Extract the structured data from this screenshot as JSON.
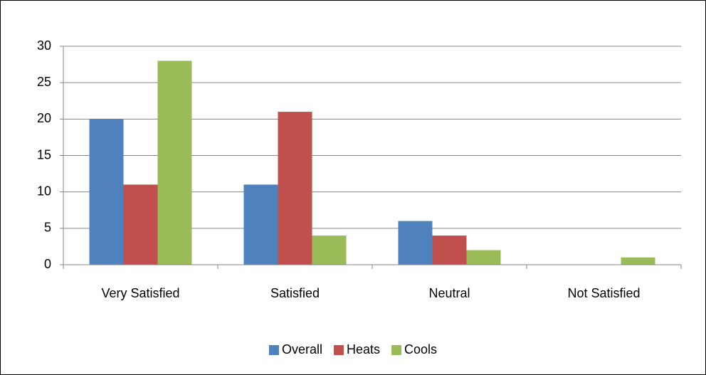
{
  "chart_data": {
    "type": "bar",
    "categories": [
      "Very Satisfied",
      "Satisfied",
      "Neutral",
      "Not Satisfied"
    ],
    "series": [
      {
        "name": "Overall",
        "color": "#4f81bd",
        "values": [
          20,
          11,
          6,
          0
        ]
      },
      {
        "name": "Heats",
        "color": "#c0504d",
        "values": [
          11,
          21,
          4,
          0
        ]
      },
      {
        "name": "Cools",
        "color": "#9bbb59",
        "values": [
          28,
          4,
          2,
          1
        ]
      }
    ],
    "ylim": [
      0,
      30
    ],
    "yticks": [
      0,
      5,
      10,
      15,
      20,
      25,
      30
    ],
    "grid": true,
    "legend": "bottom"
  }
}
